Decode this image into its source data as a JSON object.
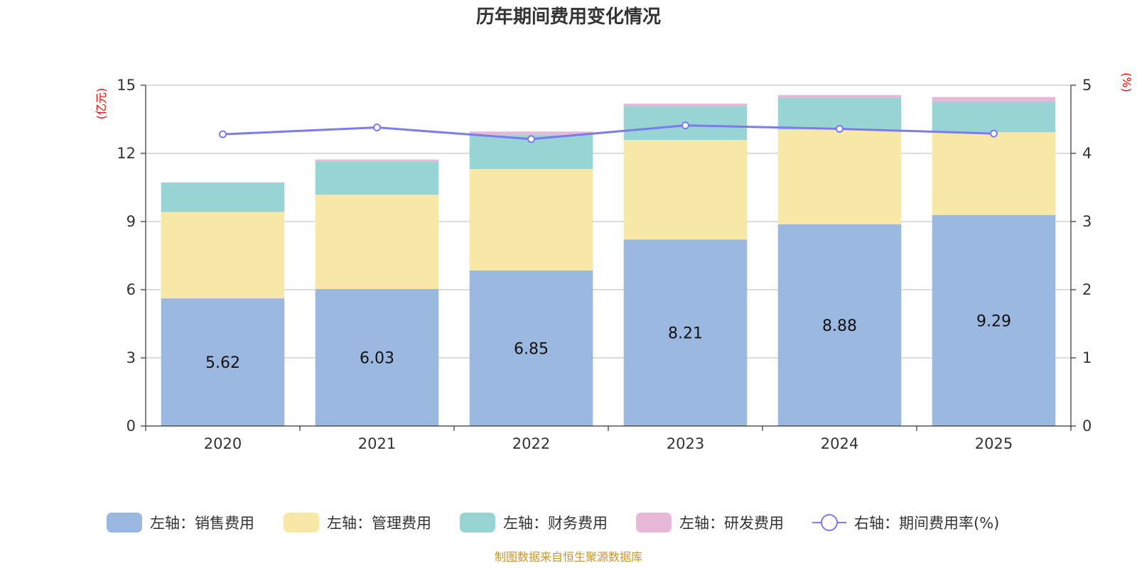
{
  "chart_data": {
    "type": "bar",
    "stacked": true,
    "title": "历年期间费用变化情况",
    "categories": [
      "2020",
      "2021",
      "2022",
      "2023",
      "2024",
      "2025"
    ],
    "left_axis": {
      "unit": "(亿元)",
      "ticks": [
        "0",
        "3",
        "6",
        "9",
        "12",
        "15"
      ],
      "range": [
        0,
        15
      ]
    },
    "right_axis": {
      "unit": "(%)",
      "ticks": [
        "0",
        "1",
        "2",
        "3",
        "4",
        "5"
      ],
      "range": [
        0,
        5
      ]
    },
    "series": [
      {
        "name": "左轴：销售费用",
        "color": "#9bb8e1",
        "values": [
          5.62,
          6.03,
          6.85,
          8.21,
          8.88,
          9.29
        ],
        "labels": [
          "5.62",
          "6.03",
          "6.85",
          "8.21",
          "8.88",
          "9.29"
        ]
      },
      {
        "name": "左轴：管理费用",
        "color": "#f7e8a8",
        "values": [
          3.8,
          4.15,
          4.46,
          4.38,
          4.17,
          3.64
        ]
      },
      {
        "name": "左轴：财务费用",
        "color": "#98d4d4",
        "values": [
          1.3,
          1.45,
          1.5,
          1.5,
          1.4,
          1.35
        ]
      },
      {
        "name": "左轴：研发费用",
        "color": "#e8b8d8",
        "values": [
          0.0,
          0.1,
          0.15,
          0.1,
          0.12,
          0.2
        ]
      }
    ],
    "line": {
      "name": "右轴：期间费用率(%)",
      "color": "#7b7bef",
      "values": [
        4.28,
        4.38,
        4.21,
        4.41,
        4.36,
        4.29
      ]
    },
    "grid": true,
    "legend_position": "bottom"
  },
  "source": "制图数据来自恒生聚源数据库"
}
